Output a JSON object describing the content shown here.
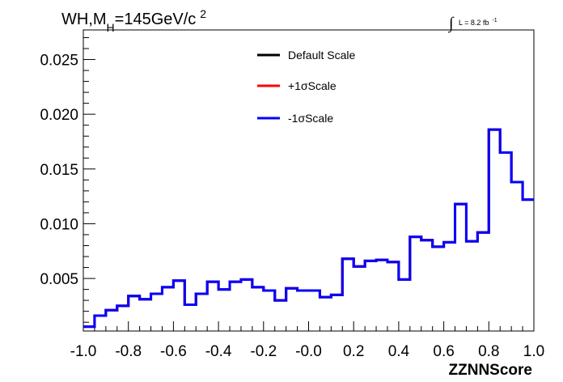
{
  "chart_data": {
    "type": "line",
    "title": {
      "prefix": "WH,M",
      "subscript": "H",
      "rest": "=145GeV/c",
      "superscript": "2"
    },
    "luminosity": {
      "integral": "∫",
      "text": "L = 8.2 fb",
      "superscript": "-1"
    },
    "xlabel": "ZZNNScore",
    "ylabel": "",
    "xlim": [
      -1.0,
      1.0
    ],
    "ylim": [
      0.0002,
      0.0277
    ],
    "x_ticks": [
      {
        "value": -1.0,
        "label": "-1.0"
      },
      {
        "value": -0.8,
        "label": "-0.8"
      },
      {
        "value": -0.6,
        "label": "-0.6"
      },
      {
        "value": -0.4,
        "label": "-0.4"
      },
      {
        "value": -0.2,
        "label": "-0.2"
      },
      {
        "value": 0.0,
        "label": "-0.0"
      },
      {
        "value": 0.2,
        "label": "0.2"
      },
      {
        "value": 0.4,
        "label": "0.4"
      },
      {
        "value": 0.6,
        "label": "0.6"
      },
      {
        "value": 0.8,
        "label": "0.8"
      },
      {
        "value": 1.0,
        "label": "1.0"
      }
    ],
    "y_ticks": [
      {
        "value": 0.005,
        "label": "0.005"
      },
      {
        "value": 0.01,
        "label": "0.010"
      },
      {
        "value": 0.015,
        "label": "0.015"
      },
      {
        "value": 0.02,
        "label": "0.020"
      },
      {
        "value": 0.025,
        "label": "0.025"
      }
    ],
    "bin_edges": [
      -1.0,
      -0.95,
      -0.9,
      -0.85,
      -0.8,
      -0.75,
      -0.7,
      -0.65,
      -0.6,
      -0.55,
      -0.5,
      -0.45,
      -0.4,
      -0.35,
      -0.3,
      -0.25,
      -0.2,
      -0.15,
      -0.1,
      -0.05,
      0.0,
      0.05,
      0.1,
      0.15,
      0.2,
      0.25,
      0.3,
      0.35,
      0.4,
      0.45,
      0.5,
      0.55,
      0.6,
      0.65,
      0.7,
      0.75,
      0.8,
      0.85,
      0.9,
      0.95,
      1.0
    ],
    "series": [
      {
        "name": "Default Scale",
        "color": "#000000",
        "values": [
          0.0006,
          0.0016,
          0.0021,
          0.0025,
          0.0034,
          0.0031,
          0.0036,
          0.0042,
          0.0048,
          0.0026,
          0.0036,
          0.0047,
          0.004,
          0.0047,
          0.0049,
          0.0042,
          0.0039,
          0.003,
          0.0041,
          0.0039,
          0.0039,
          0.0033,
          0.0035,
          0.0068,
          0.0061,
          0.0066,
          0.0067,
          0.0065,
          0.0049,
          0.0088,
          0.0085,
          0.0079,
          0.0083,
          0.0118,
          0.0084,
          0.0092,
          0.0186,
          0.0165,
          0.0138,
          0.0122
        ]
      },
      {
        "name": "+1σScale",
        "color": "#ff0000",
        "values": [
          0.0006,
          0.0016,
          0.0021,
          0.0025,
          0.0034,
          0.0031,
          0.0036,
          0.0042,
          0.0048,
          0.0026,
          0.0036,
          0.0047,
          0.004,
          0.0047,
          0.0049,
          0.0042,
          0.0039,
          0.003,
          0.0041,
          0.0039,
          0.0039,
          0.0033,
          0.0035,
          0.0068,
          0.0061,
          0.0066,
          0.0067,
          0.0065,
          0.0049,
          0.0088,
          0.0085,
          0.0079,
          0.0083,
          0.0118,
          0.0084,
          0.0092,
          0.0186,
          0.0165,
          0.0138,
          0.0122
        ]
      },
      {
        "name": "-1σScale",
        "color": "#0000ff",
        "values": [
          0.0006,
          0.0016,
          0.0021,
          0.0025,
          0.0034,
          0.0031,
          0.0036,
          0.0042,
          0.0048,
          0.0026,
          0.0036,
          0.0047,
          0.004,
          0.0047,
          0.0049,
          0.0042,
          0.0039,
          0.003,
          0.0041,
          0.0039,
          0.0039,
          0.0033,
          0.0035,
          0.0068,
          0.0061,
          0.0066,
          0.0067,
          0.0065,
          0.0049,
          0.0088,
          0.0085,
          0.0079,
          0.0083,
          0.0118,
          0.0084,
          0.0092,
          0.0186,
          0.0165,
          0.0138,
          0.0122
        ]
      }
    ],
    "legend_position": "top-center",
    "grid": false
  }
}
